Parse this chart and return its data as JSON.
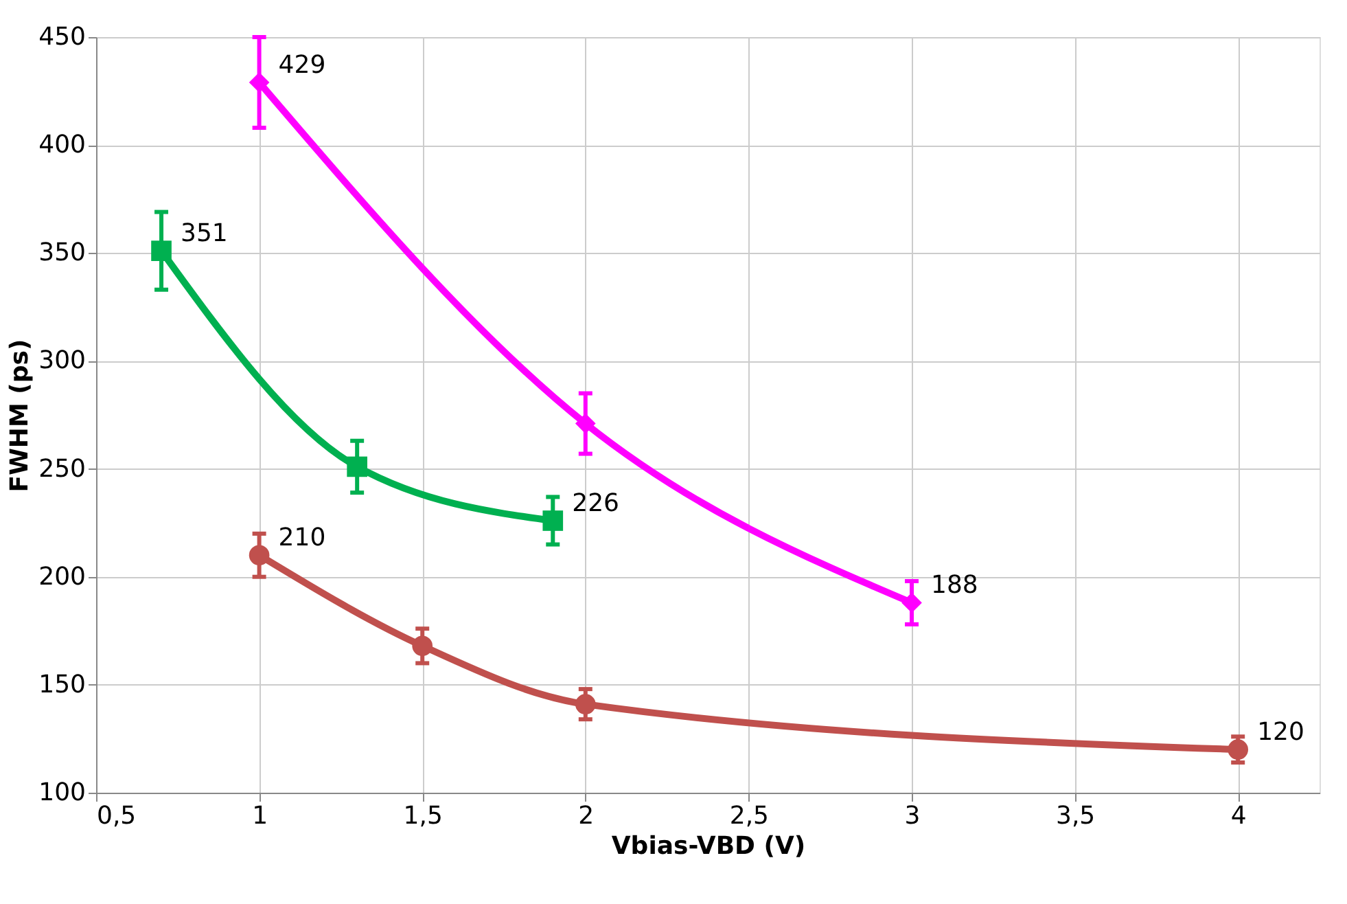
{
  "chart_data": {
    "type": "line",
    "xlabel": "Vbias-VBD (V)",
    "ylabel": "FWHM (ps)",
    "xlim": [
      0.5,
      4.25
    ],
    "ylim": [
      100,
      450
    ],
    "xticks": [
      {
        "value": 0.5,
        "label": "0,5"
      },
      1,
      {
        "value": 1.5,
        "label": "1,5"
      },
      2,
      {
        "value": 2.5,
        "label": "2,5"
      },
      3,
      {
        "value": 3.5,
        "label": "3,5"
      },
      4
    ],
    "yticks": [
      100,
      150,
      200,
      250,
      300,
      350,
      400,
      450
    ],
    "grid": true,
    "line_style": "solid",
    "series": [
      {
        "color": "#ff00ff",
        "marker": "diamond",
        "x": [
          1,
          2,
          3
        ],
        "values": [
          429,
          271,
          188
        ],
        "errors": [
          [
            408,
            450
          ],
          14,
          10
        ],
        "value_labels": [
          "429",
          null,
          "188"
        ]
      },
      {
        "color": "#00b050",
        "marker": "square",
        "x": [
          0.7,
          1.3,
          1.9
        ],
        "values": [
          351,
          251,
          226
        ],
        "errors": [
          18,
          12,
          11
        ],
        "value_labels": [
          "351",
          null,
          "226"
        ]
      },
      {
        "color": "#c0504d",
        "marker": "circle",
        "x": [
          1,
          1.5,
          2,
          4
        ],
        "values": [
          210,
          168,
          141,
          120
        ],
        "errors": [
          10,
          8,
          7,
          6
        ],
        "value_labels": [
          "210",
          null,
          null,
          "120"
        ]
      }
    ]
  }
}
